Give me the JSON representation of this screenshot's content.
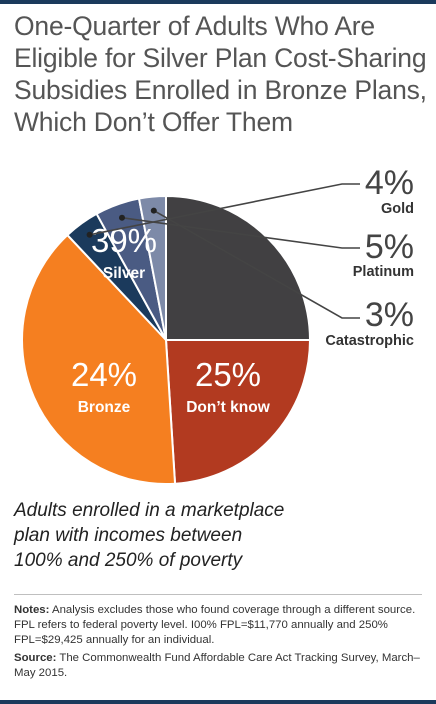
{
  "title_lines": [
    "One-Quarter of Adults Who Are",
    "Eligible for Silver Plan Cost-Sharing",
    "Subsidies Enrolled in Bronze Plans,",
    "Which Don’t Offer Them"
  ],
  "chart_data": {
    "type": "pie",
    "slices": [
      {
        "label": "Don’t know",
        "value": 25,
        "display": "25%",
        "color": "#414042"
      },
      {
        "label": "Bronze",
        "value": 24,
        "display": "24%",
        "color": "#b23a20"
      },
      {
        "label": "Silver",
        "value": 39,
        "display": "39%",
        "color": "#f57f20"
      },
      {
        "label": "Gold",
        "value": 4,
        "display": "4%",
        "color": "#1b3a5c"
      },
      {
        "label": "Platinum",
        "value": 5,
        "display": "5%",
        "color": "#4a5b83"
      },
      {
        "label": "Catastrophic",
        "value": 3,
        "display": "3%",
        "color": "#7d8aa8"
      }
    ]
  },
  "subtitle_lines": [
    "Adults enrolled in a marketplace",
    "plan with incomes between",
    "100% and 250% of poverty"
  ],
  "notes": {
    "notes_label": "Notes:",
    "notes_text": " Analysis excludes those who found coverage through a different source. FPL refers to federal poverty level. I00% FPL=$11,770 annually and 250% FPL=$29,425 annually for an individual.",
    "source_label": "Source:",
    "source_text": " The Commonwealth Fund Affordable Care Act Tracking Survey, March–May 2015."
  }
}
